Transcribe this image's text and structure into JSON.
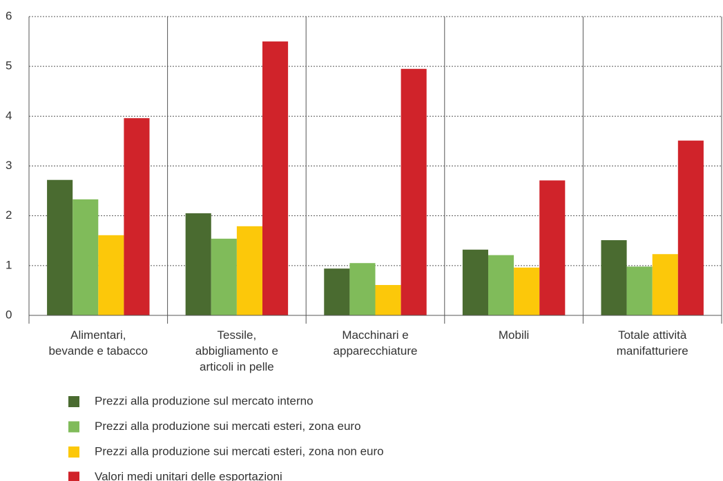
{
  "chart_data": {
    "type": "bar",
    "categories": [
      "Alimentari, bevande e tabacco",
      "Tessile, abbigliamento e articoli in pelle",
      "Macchinari e apparecchiature",
      "Mobili",
      "Totale attività manifatturiere"
    ],
    "series": [
      {
        "name": "Prezzi alla produzione sul mercato interno",
        "color": "#4a6b30",
        "values": [
          2.72,
          2.05,
          0.94,
          1.32,
          1.51
        ]
      },
      {
        "name": "Prezzi alla produzione sui mercati esteri, zona euro",
        "color": "#80bb5a",
        "values": [
          2.33,
          1.54,
          1.05,
          1.21,
          0.98
        ]
      },
      {
        "name": "Prezzi alla produzione sui mercati esteri, zona non euro",
        "color": "#fcc80a",
        "values": [
          1.61,
          1.79,
          0.61,
          0.96,
          1.23
        ]
      },
      {
        "name": "Valori medi unitari delle esportazioni",
        "color": "#d0232a",
        "values": [
          3.96,
          5.5,
          4.95,
          2.71,
          3.51
        ]
      }
    ],
    "ylim": [
      0,
      6
    ],
    "yticks": [
      0,
      1,
      2,
      3,
      4,
      5,
      6
    ],
    "grid": true,
    "legend": "bottom"
  }
}
